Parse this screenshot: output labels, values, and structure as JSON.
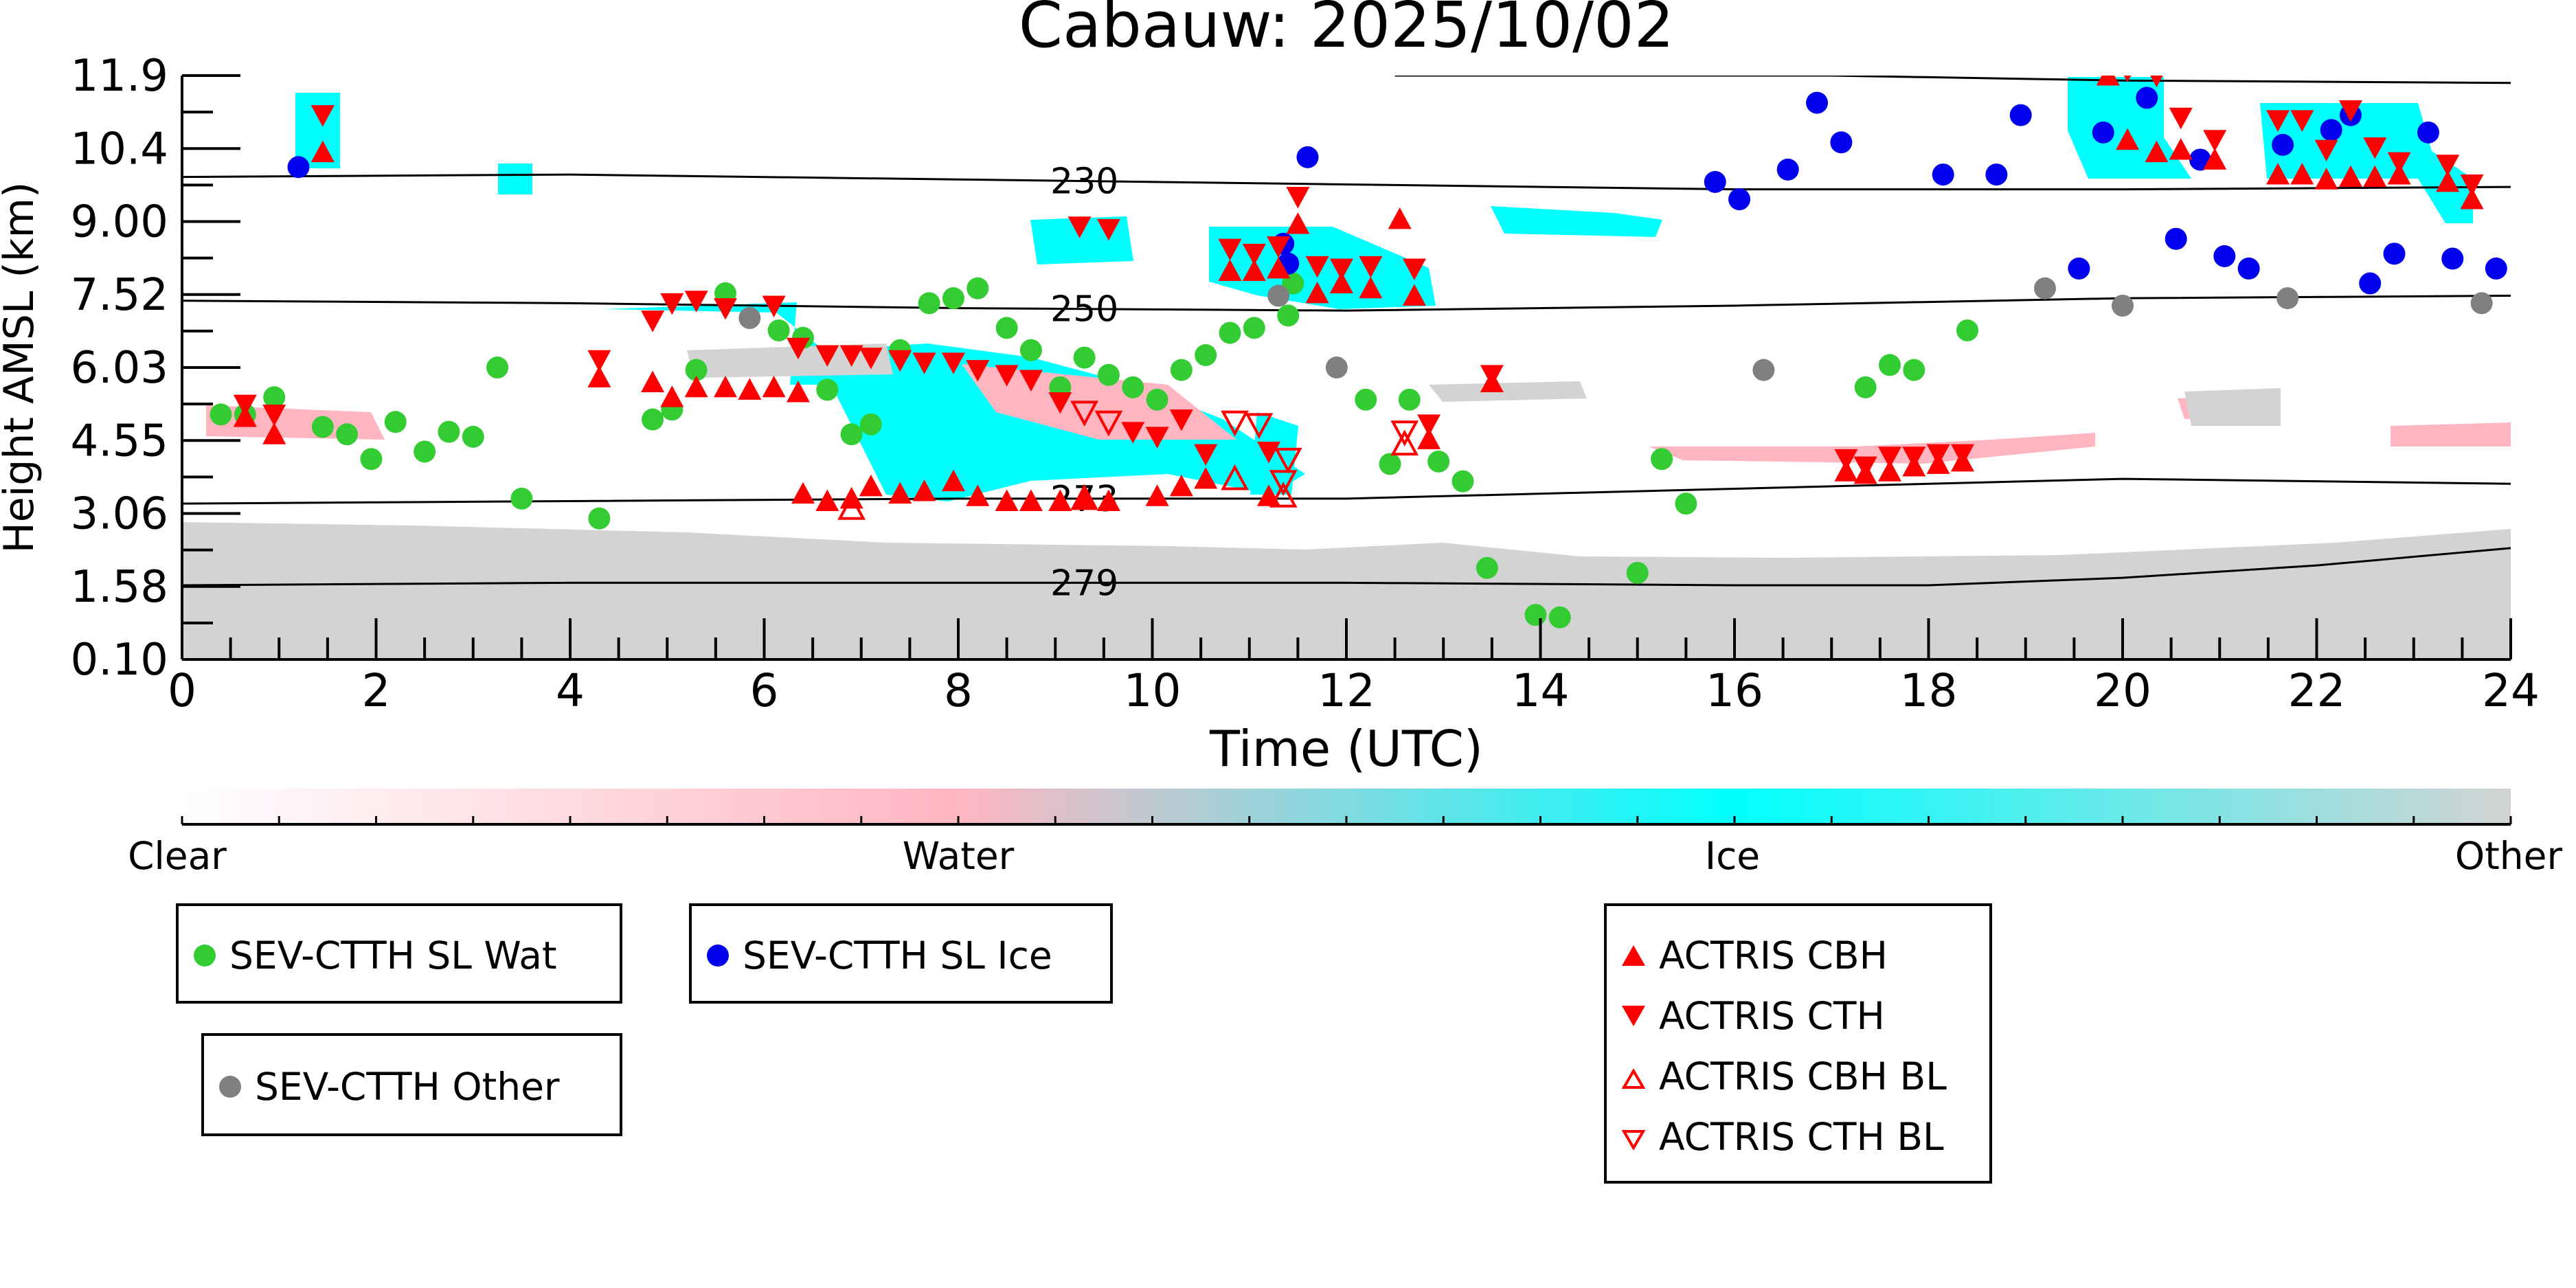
{
  "chart_data": {
    "type": "scatter",
    "title": "Cabauw: 2025/10/02",
    "xlabel": "Time (UTC)",
    "ylabel": "Height AMSL (km)",
    "xlim": [
      0,
      24
    ],
    "ylim": [
      0.1,
      11.9
    ],
    "x_ticks": [
      0,
      2,
      4,
      6,
      8,
      10,
      12,
      14,
      16,
      18,
      20,
      22,
      24
    ],
    "y_ticks": [
      "0.10",
      "1.58",
      "3.06",
      "4.55",
      "6.03",
      "7.52",
      "9.00",
      "10.4",
      "11.9"
    ],
    "colorbar": {
      "labels": [
        "Clear",
        "Water",
        "Ice",
        "Other"
      ],
      "colors": [
        "#ffffff",
        "#ffb6c1",
        "#00ffff",
        "#d3d3d3"
      ]
    },
    "contours": [
      {
        "label": "230",
        "label_x": 9.3,
        "points": [
          [
            0,
            9.85
          ],
          [
            4,
            9.9
          ],
          [
            8,
            9.8
          ],
          [
            12,
            9.7
          ],
          [
            16,
            9.6
          ],
          [
            20,
            9.6
          ],
          [
            24,
            9.65
          ]
        ]
      },
      {
        "label": "250",
        "label_x": 9.3,
        "points": [
          [
            0,
            7.35
          ],
          [
            4,
            7.3
          ],
          [
            8,
            7.2
          ],
          [
            12,
            7.15
          ],
          [
            16,
            7.25
          ],
          [
            20,
            7.4
          ],
          [
            24,
            7.45
          ]
        ]
      },
      {
        "label": "273",
        "label_x": 9.3,
        "points": [
          [
            0,
            3.25
          ],
          [
            4,
            3.3
          ],
          [
            8,
            3.35
          ],
          [
            12,
            3.35
          ],
          [
            16,
            3.55
          ],
          [
            20,
            3.75
          ],
          [
            24,
            3.65
          ]
        ]
      },
      {
        "label": "279",
        "label_x": 9.3,
        "points": [
          [
            0,
            1.6
          ],
          [
            4,
            1.65
          ],
          [
            8,
            1.65
          ],
          [
            12,
            1.65
          ],
          [
            16,
            1.6
          ],
          [
            18,
            1.6
          ],
          [
            20,
            1.75
          ],
          [
            22,
            2.0
          ],
          [
            24,
            2.35
          ]
        ]
      },
      {
        "label": "",
        "label_x": null,
        "points": [
          [
            12.5,
            11.9
          ],
          [
            17,
            11.9
          ],
          [
            20,
            11.8
          ],
          [
            24,
            11.75
          ]
        ]
      }
    ],
    "series": [
      {
        "name": "SEV-CTTH SL Wat",
        "marker": "dot",
        "color": "#33cc33",
        "points": [
          [
            0.4,
            5.05
          ],
          [
            0.65,
            5.05
          ],
          [
            0.95,
            5.4
          ],
          [
            1.45,
            4.8
          ],
          [
            1.7,
            4.65
          ],
          [
            1.95,
            4.15
          ],
          [
            2.2,
            4.9
          ],
          [
            2.5,
            4.3
          ],
          [
            2.75,
            4.7
          ],
          [
            3.0,
            4.6
          ],
          [
            3.25,
            6.0
          ],
          [
            3.5,
            3.35
          ],
          [
            4.3,
            2.95
          ],
          [
            4.85,
            4.95
          ],
          [
            5.05,
            5.15
          ],
          [
            5.3,
            5.95
          ],
          [
            5.6,
            7.5
          ],
          [
            6.15,
            6.75
          ],
          [
            6.4,
            6.6
          ],
          [
            6.65,
            5.55
          ],
          [
            6.9,
            4.65
          ],
          [
            7.1,
            4.85
          ],
          [
            7.4,
            6.35
          ],
          [
            7.7,
            7.3
          ],
          [
            7.95,
            7.4
          ],
          [
            8.2,
            7.6
          ],
          [
            8.5,
            6.8
          ],
          [
            8.75,
            6.35
          ],
          [
            9.05,
            5.6
          ],
          [
            9.3,
            6.2
          ],
          [
            9.55,
            5.85
          ],
          [
            9.8,
            5.6
          ],
          [
            10.05,
            5.35
          ],
          [
            10.3,
            5.95
          ],
          [
            10.55,
            6.25
          ],
          [
            10.8,
            6.7
          ],
          [
            11.05,
            6.8
          ],
          [
            11.4,
            7.05
          ],
          [
            11.45,
            7.7
          ],
          [
            12.2,
            5.35
          ],
          [
            12.45,
            4.05
          ],
          [
            12.65,
            5.35
          ],
          [
            12.95,
            4.1
          ],
          [
            13.2,
            3.7
          ],
          [
            13.45,
            1.95
          ],
          [
            13.95,
            1.0
          ],
          [
            14.2,
            0.95
          ],
          [
            15.0,
            1.85
          ],
          [
            15.25,
            4.15
          ],
          [
            15.5,
            3.25
          ],
          [
            17.35,
            5.6
          ],
          [
            17.6,
            6.05
          ],
          [
            17.85,
            5.95
          ],
          [
            18.4,
            6.75
          ]
        ]
      },
      {
        "name": "SEV-CTTH SL Ice",
        "marker": "dot",
        "color": "#0000ee",
        "points": [
          [
            1.2,
            10.05
          ],
          [
            11.35,
            8.5
          ],
          [
            11.4,
            8.1
          ],
          [
            11.6,
            10.25
          ],
          [
            15.8,
            9.75
          ],
          [
            16.05,
            9.4
          ],
          [
            16.55,
            10.0
          ],
          [
            16.85,
            11.35
          ],
          [
            17.1,
            10.55
          ],
          [
            18.15,
            9.9
          ],
          [
            18.7,
            9.9
          ],
          [
            18.95,
            11.1
          ],
          [
            19.55,
            8.0
          ],
          [
            19.8,
            10.75
          ],
          [
            20.25,
            11.45
          ],
          [
            20.55,
            8.6
          ],
          [
            20.8,
            10.2
          ],
          [
            21.05,
            8.25
          ],
          [
            21.3,
            8.0
          ],
          [
            21.65,
            10.5
          ],
          [
            22.15,
            10.8
          ],
          [
            22.35,
            11.1
          ],
          [
            22.55,
            7.7
          ],
          [
            22.8,
            8.3
          ],
          [
            23.15,
            10.75
          ],
          [
            23.4,
            8.2
          ],
          [
            23.85,
            8.0
          ]
        ]
      },
      {
        "name": "SEV-CTTH Other",
        "marker": "dot",
        "color": "#808080",
        "points": [
          [
            5.85,
            7.0
          ],
          [
            11.3,
            7.45
          ],
          [
            11.9,
            6.0
          ],
          [
            16.3,
            5.95
          ],
          [
            19.2,
            7.6
          ],
          [
            20.0,
            7.25
          ],
          [
            21.7,
            7.4
          ],
          [
            23.7,
            7.3
          ]
        ]
      },
      {
        "name": "ACTRIS CBH",
        "marker": "tri-up",
        "color": "#ff0000",
        "points": [
          [
            0.65,
            5.0
          ],
          [
            0.95,
            4.65
          ],
          [
            1.45,
            10.35
          ],
          [
            4.3,
            5.8
          ],
          [
            4.85,
            5.7
          ],
          [
            5.05,
            5.4
          ],
          [
            5.3,
            5.6
          ],
          [
            5.6,
            5.6
          ],
          [
            5.85,
            5.55
          ],
          [
            6.1,
            5.6
          ],
          [
            6.35,
            5.5
          ],
          [
            6.4,
            3.45
          ],
          [
            6.65,
            3.3
          ],
          [
            6.9,
            3.35
          ],
          [
            7.1,
            3.6
          ],
          [
            7.4,
            3.45
          ],
          [
            7.65,
            3.5
          ],
          [
            7.95,
            3.7
          ],
          [
            8.2,
            3.4
          ],
          [
            8.5,
            3.3
          ],
          [
            8.75,
            3.3
          ],
          [
            9.05,
            3.3
          ],
          [
            9.3,
            3.35
          ],
          [
            9.55,
            3.3
          ],
          [
            10.05,
            3.4
          ],
          [
            10.3,
            3.6
          ],
          [
            10.55,
            3.75
          ],
          [
            10.8,
            7.95
          ],
          [
            11.05,
            7.95
          ],
          [
            11.2,
            3.4
          ],
          [
            11.3,
            8.0
          ],
          [
            11.5,
            8.9
          ],
          [
            11.7,
            7.5
          ],
          [
            11.95,
            7.7
          ],
          [
            12.25,
            7.6
          ],
          [
            12.55,
            9.0
          ],
          [
            12.7,
            7.45
          ],
          [
            12.85,
            4.55
          ],
          [
            13.5,
            5.7
          ],
          [
            17.15,
            3.9
          ],
          [
            17.35,
            3.85
          ],
          [
            17.6,
            3.9
          ],
          [
            17.85,
            4.0
          ],
          [
            18.1,
            4.05
          ],
          [
            18.35,
            4.1
          ],
          [
            19.85,
            11.9
          ],
          [
            20.05,
            10.6
          ],
          [
            20.35,
            10.35
          ],
          [
            20.6,
            10.4
          ],
          [
            20.95,
            10.2
          ],
          [
            21.6,
            9.9
          ],
          [
            21.85,
            9.9
          ],
          [
            22.1,
            9.8
          ],
          [
            22.35,
            9.85
          ],
          [
            22.6,
            9.85
          ],
          [
            22.85,
            9.9
          ],
          [
            23.35,
            9.75
          ],
          [
            23.6,
            9.4
          ]
        ]
      },
      {
        "name": "ACTRIS CTH",
        "marker": "tri-down",
        "color": "#ff0000",
        "points": [
          [
            0.65,
            5.25
          ],
          [
            0.95,
            5.05
          ],
          [
            1.45,
            11.1
          ],
          [
            4.3,
            6.15
          ],
          [
            4.85,
            6.95
          ],
          [
            5.05,
            7.3
          ],
          [
            5.3,
            7.35
          ],
          [
            5.6,
            7.2
          ],
          [
            6.1,
            7.25
          ],
          [
            6.35,
            6.4
          ],
          [
            6.65,
            6.25
          ],
          [
            6.9,
            6.25
          ],
          [
            7.1,
            6.2
          ],
          [
            7.4,
            6.15
          ],
          [
            7.65,
            6.1
          ],
          [
            7.95,
            6.1
          ],
          [
            8.2,
            5.95
          ],
          [
            8.5,
            5.85
          ],
          [
            8.75,
            5.75
          ],
          [
            9.05,
            5.3
          ],
          [
            9.25,
            8.85
          ],
          [
            9.55,
            8.8
          ],
          [
            9.8,
            4.7
          ],
          [
            10.05,
            4.6
          ],
          [
            10.3,
            4.95
          ],
          [
            10.55,
            4.25
          ],
          [
            10.8,
            8.4
          ],
          [
            11.05,
            8.3
          ],
          [
            11.2,
            4.3
          ],
          [
            11.3,
            8.45
          ],
          [
            11.5,
            9.45
          ],
          [
            11.7,
            8.05
          ],
          [
            11.95,
            8.0
          ],
          [
            12.25,
            8.05
          ],
          [
            12.7,
            8.0
          ],
          [
            12.85,
            4.85
          ],
          [
            13.5,
            5.85
          ],
          [
            17.15,
            4.15
          ],
          [
            17.35,
            4.0
          ],
          [
            17.6,
            4.2
          ],
          [
            17.85,
            4.2
          ],
          [
            18.1,
            4.25
          ],
          [
            18.35,
            4.25
          ],
          [
            19.85,
            12.0
          ],
          [
            20.05,
            12.0
          ],
          [
            20.35,
            11.9
          ],
          [
            20.6,
            11.05
          ],
          [
            20.95,
            10.6
          ],
          [
            21.6,
            11.0
          ],
          [
            21.85,
            11.0
          ],
          [
            22.1,
            10.4
          ],
          [
            22.35,
            11.2
          ],
          [
            22.6,
            10.45
          ],
          [
            22.85,
            10.15
          ],
          [
            23.35,
            10.1
          ],
          [
            23.6,
            9.7
          ]
        ]
      },
      {
        "name": "ACTRIS CBH BL",
        "marker": "tri-up-open",
        "color": "#ff0000",
        "points": [
          [
            6.9,
            3.15
          ],
          [
            9.3,
            3.35
          ],
          [
            10.85,
            3.75
          ],
          [
            11.35,
            3.4
          ],
          [
            12.6,
            4.45
          ]
        ]
      },
      {
        "name": "ACTRIS CTH BL",
        "marker": "tri-down-open",
        "color": "#ff0000",
        "points": [
          [
            9.3,
            5.1
          ],
          [
            9.55,
            4.9
          ],
          [
            10.85,
            4.9
          ],
          [
            11.1,
            4.85
          ],
          [
            11.35,
            3.7
          ],
          [
            11.4,
            4.15
          ],
          [
            12.6,
            4.7
          ]
        ]
      }
    ]
  },
  "legend": {
    "wat": "SEV-CTTH SL Wat",
    "ice": "SEV-CTTH SL Ice",
    "other": "SEV-CTTH Other",
    "cbh": "ACTRIS CBH",
    "cth": "ACTRIS CTH",
    "cbh_bl": "ACTRIS CBH BL",
    "cth_bl": "ACTRIS CTH BL"
  },
  "colors": {
    "water_dot": "#33cc33",
    "ice_dot": "#0000ee",
    "other_dot": "#808080",
    "actris": "#ff0000"
  }
}
